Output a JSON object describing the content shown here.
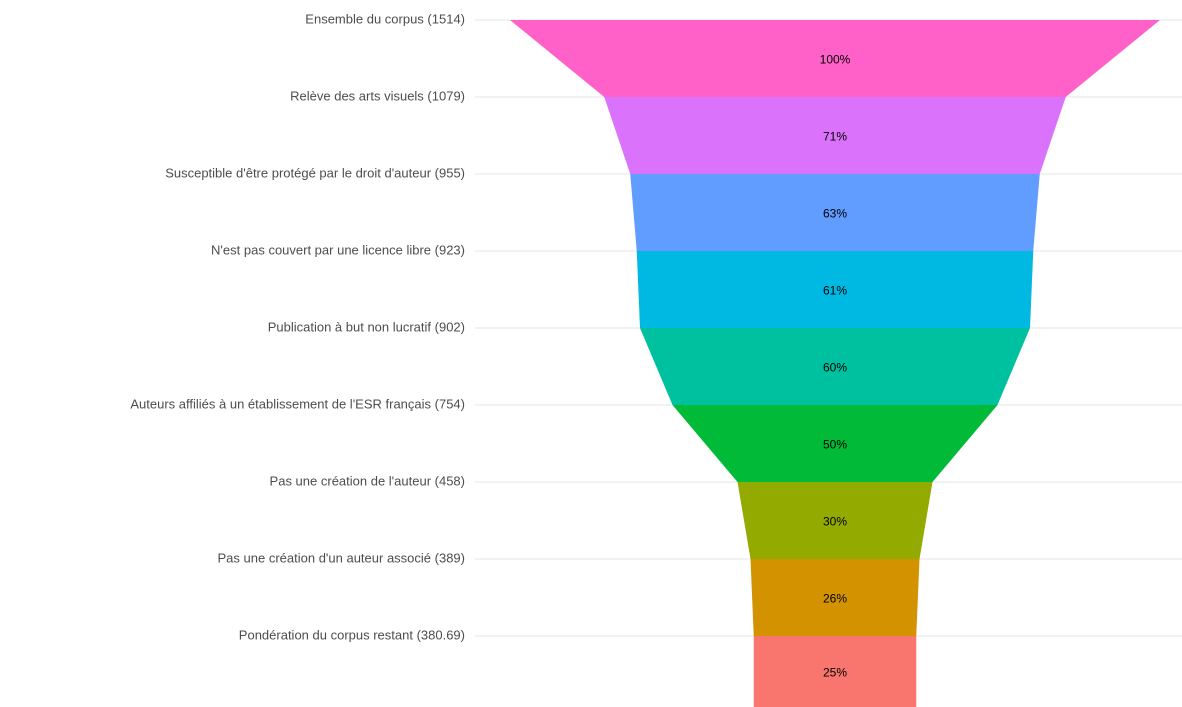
{
  "chart_data": {
    "type": "funnel",
    "categories": [
      "Ensemble du corpus (1514)",
      "Relève des arts visuels (1079)",
      "Susceptible d'être protégé par le droit d'auteur (955)",
      "N'est pas couvert par une licence libre (923)",
      "Publication à but non lucratif (902)",
      "Auteurs affiliés à un établissement de l'ESR français (754)",
      "Pas une création de l'auteur (458)",
      "Pas une création d'un auteur associé (389)",
      "Pondération du corpus restant (380.69)"
    ],
    "values": [
      100,
      71,
      63,
      61,
      60,
      50,
      30,
      26,
      25
    ],
    "value_labels": [
      "100%",
      "71%",
      "63%",
      "61%",
      "60%",
      "50%",
      "30%",
      "26%",
      "25%"
    ],
    "colors": [
      "#FF61C9",
      "#DB72FB",
      "#619CFF",
      "#00B9E3",
      "#00C19F",
      "#00BA38",
      "#93AA00",
      "#D39200",
      "#F8766D"
    ],
    "grid": true
  }
}
